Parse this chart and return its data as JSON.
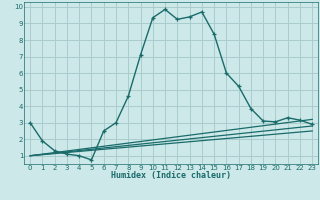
{
  "xlabel": "Humidex (Indice chaleur)",
  "bg_color": "#cce8e8",
  "grid_color": "#aacccc",
  "line_color": "#1a6b6b",
  "xlim": [
    -0.5,
    23.5
  ],
  "ylim": [
    0.5,
    10.3
  ],
  "xticks": [
    0,
    1,
    2,
    3,
    4,
    5,
    6,
    7,
    8,
    9,
    10,
    11,
    12,
    13,
    14,
    15,
    16,
    17,
    18,
    19,
    20,
    21,
    22,
    23
  ],
  "yticks": [
    1,
    2,
    3,
    4,
    5,
    6,
    7,
    8,
    9,
    10
  ],
  "main_x": [
    0,
    1,
    2,
    3,
    4,
    5,
    6,
    7,
    8,
    9,
    10,
    11,
    12,
    13,
    14,
    15,
    16,
    17,
    18,
    19,
    20,
    21,
    22,
    23
  ],
  "main_y": [
    3.0,
    1.9,
    1.3,
    1.1,
    1.0,
    0.75,
    2.5,
    3.0,
    4.6,
    7.1,
    9.35,
    9.85,
    9.25,
    9.4,
    9.7,
    8.35,
    6.0,
    5.2,
    3.85,
    3.1,
    3.05,
    3.3,
    3.15,
    2.9
  ],
  "ref_lines": [
    {
      "x": [
        0,
        23
      ],
      "y": [
        1.0,
        2.5
      ]
    },
    {
      "x": [
        0,
        23
      ],
      "y": [
        1.0,
        2.8
      ]
    },
    {
      "x": [
        0,
        23
      ],
      "y": [
        1.0,
        3.2
      ]
    }
  ]
}
